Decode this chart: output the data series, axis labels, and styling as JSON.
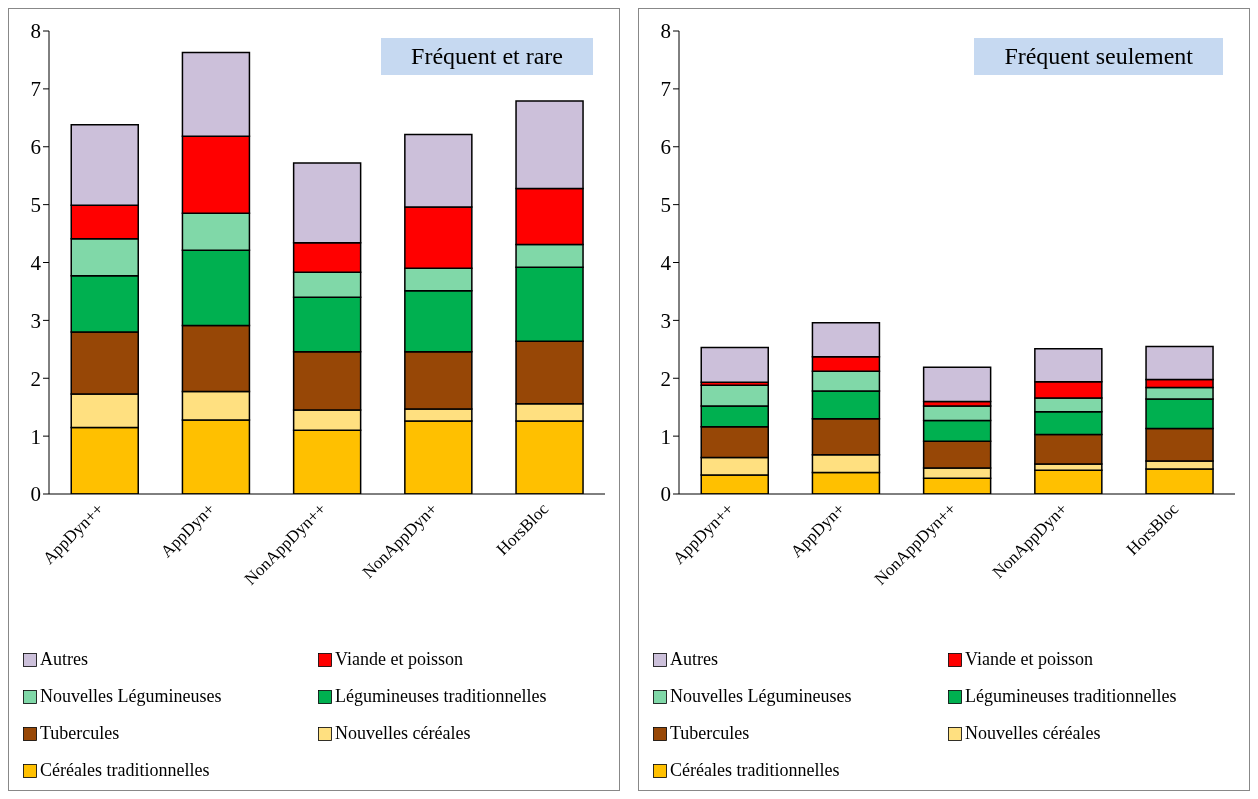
{
  "chart_data": [
    {
      "type": "bar",
      "title": "Fréquent et rare",
      "stacked": true,
      "categories": [
        "AppDyn++",
        "AppDyn+",
        "NonAppDyn++",
        "NonAppDyn+",
        "HorsBloc"
      ],
      "ylim": [
        0,
        8
      ],
      "yticks": [
        0,
        1,
        2,
        3,
        4,
        5,
        6,
        7,
        8
      ],
      "grid": false,
      "legend": "bottom",
      "series": [
        {
          "name": "Céréales traditionnelles",
          "color": "#ffc000",
          "values": [
            1.15,
            1.28,
            1.1,
            1.26,
            1.26
          ]
        },
        {
          "name": "Nouvelles céréales",
          "color": "#ffe080",
          "values": [
            0.58,
            0.49,
            0.35,
            0.21,
            0.3
          ]
        },
        {
          "name": "Tubercules",
          "color": "#974706",
          "values": [
            1.07,
            1.14,
            1.01,
            0.99,
            1.08
          ]
        },
        {
          "name": "Légumineuses traditionnelles",
          "color": "#00b050",
          "values": [
            0.97,
            1.3,
            0.94,
            1.05,
            1.28
          ]
        },
        {
          "name": "Nouvelles Légumineuses",
          "color": "#80d8a8",
          "values": [
            0.64,
            0.64,
            0.43,
            0.39,
            0.39
          ]
        },
        {
          "name": "Viande et poisson",
          "color": "#ff0000",
          "values": [
            0.58,
            1.33,
            0.51,
            1.06,
            0.97
          ]
        },
        {
          "name": "Autres",
          "color": "#ccc0da",
          "values": [
            1.39,
            1.45,
            1.38,
            1.25,
            1.51
          ]
        }
      ]
    },
    {
      "type": "bar",
      "title": "Fréquent seulement",
      "stacked": true,
      "categories": [
        "AppDyn++",
        "AppDyn+",
        "NonAppDyn++",
        "NonAppDyn+",
        "HorsBloc"
      ],
      "ylim": [
        0,
        8
      ],
      "yticks": [
        0,
        1,
        2,
        3,
        4,
        5,
        6,
        7,
        8
      ],
      "grid": false,
      "legend": "bottom",
      "series": [
        {
          "name": "Céréales traditionnelles",
          "color": "#ffc000",
          "values": [
            0.33,
            0.37,
            0.27,
            0.41,
            0.43
          ]
        },
        {
          "name": "Nouvelles céréales",
          "color": "#ffe080",
          "values": [
            0.3,
            0.31,
            0.18,
            0.11,
            0.14
          ]
        },
        {
          "name": "Tubercules",
          "color": "#974706",
          "values": [
            0.53,
            0.62,
            0.46,
            0.51,
            0.56
          ]
        },
        {
          "name": "Légumineuses traditionnelles",
          "color": "#00b050",
          "values": [
            0.36,
            0.48,
            0.36,
            0.39,
            0.51
          ]
        },
        {
          "name": "Nouvelles Légumineuses",
          "color": "#80d8a8",
          "values": [
            0.36,
            0.34,
            0.25,
            0.24,
            0.2
          ]
        },
        {
          "name": "Viande et poisson",
          "color": "#ff0000",
          "values": [
            0.05,
            0.25,
            0.08,
            0.28,
            0.14
          ]
        },
        {
          "name": "Autres",
          "color": "#ccc0da",
          "values": [
            0.6,
            0.59,
            0.59,
            0.57,
            0.57
          ]
        }
      ]
    }
  ]
}
